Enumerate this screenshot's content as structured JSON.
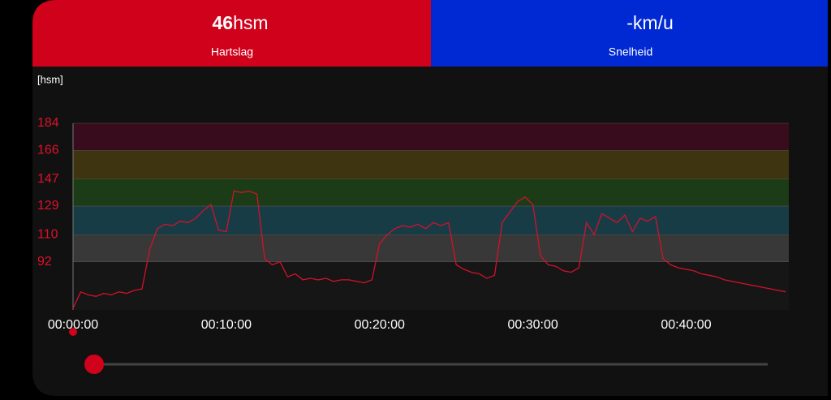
{
  "tiles": [
    {
      "value": "46",
      "unit": "hsm",
      "label": "Hartslag"
    },
    {
      "value": "-km/u",
      "label": "Snelheid"
    }
  ],
  "chart_data": {
    "type": "line",
    "y_label": "[hsm]",
    "x": [
      0,
      0.5,
      1,
      1.5,
      2,
      2.5,
      3,
      3.5,
      4,
      4.5,
      5,
      5.5,
      6,
      6.5,
      7,
      7.5,
      8,
      8.5,
      9,
      9.5,
      10,
      10.5,
      11,
      11.5,
      12,
      12.5,
      13,
      13.5,
      14,
      14.5,
      15,
      15.5,
      16,
      16.5,
      17,
      17.5,
      18,
      18.5,
      19,
      19.5,
      20,
      20.5,
      21,
      21.5,
      22,
      22.5,
      23,
      23.5,
      24,
      24.5,
      25,
      25.5,
      26,
      26.5,
      27,
      27.5,
      28,
      28.5,
      29,
      29.5,
      30,
      30.5,
      31,
      31.5,
      32,
      32.5,
      33,
      33.5,
      34,
      34.5,
      35,
      35.5,
      36,
      36.5,
      37,
      37.5,
      38,
      38.5,
      39,
      39.5,
      40,
      40.5,
      41,
      41.5,
      42,
      42.5,
      43,
      43.5,
      44,
      44.5,
      45,
      45.5,
      46,
      46.5
    ],
    "series": [
      {
        "color": "#d3112b",
        "values": [
          61,
          72,
          70,
          69,
          71,
          70,
          72,
          71,
          73,
          74,
          100,
          114,
          117,
          116,
          119,
          118,
          121,
          126,
          130,
          113,
          112,
          139,
          138,
          139,
          137,
          94,
          90,
          92,
          82,
          84,
          80,
          81,
          80,
          81,
          79,
          80,
          80,
          79,
          78,
          80,
          104,
          110,
          114,
          116,
          115,
          117,
          114,
          118,
          116,
          118,
          90,
          87,
          85,
          84,
          81,
          83,
          118,
          125,
          132,
          135,
          130,
          96,
          90,
          89,
          86,
          85,
          88,
          118,
          110,
          124,
          121,
          118,
          123,
          112,
          121,
          119,
          122,
          94,
          90,
          88,
          87,
          86,
          84,
          83,
          82,
          80,
          79,
          78,
          77,
          76,
          75,
          74,
          73,
          72
        ]
      }
    ],
    "xlim": [
      0,
      46.7
    ],
    "ylim": [
      60,
      184
    ],
    "xticks": [
      {
        "value": 0,
        "label": "00:00:00"
      },
      {
        "value": 10,
        "label": "00:10:00"
      },
      {
        "value": 20,
        "label": "00:20:00"
      },
      {
        "value": 30,
        "label": "00:30:00"
      },
      {
        "value": 40,
        "label": "00:40:00"
      }
    ],
    "yticks": [
      92,
      110,
      129,
      147,
      166,
      184
    ],
    "zone_colors": [
      "#383838",
      "#183c46",
      "#1c3c18",
      "#3e3510",
      "#380c1c"
    ]
  }
}
